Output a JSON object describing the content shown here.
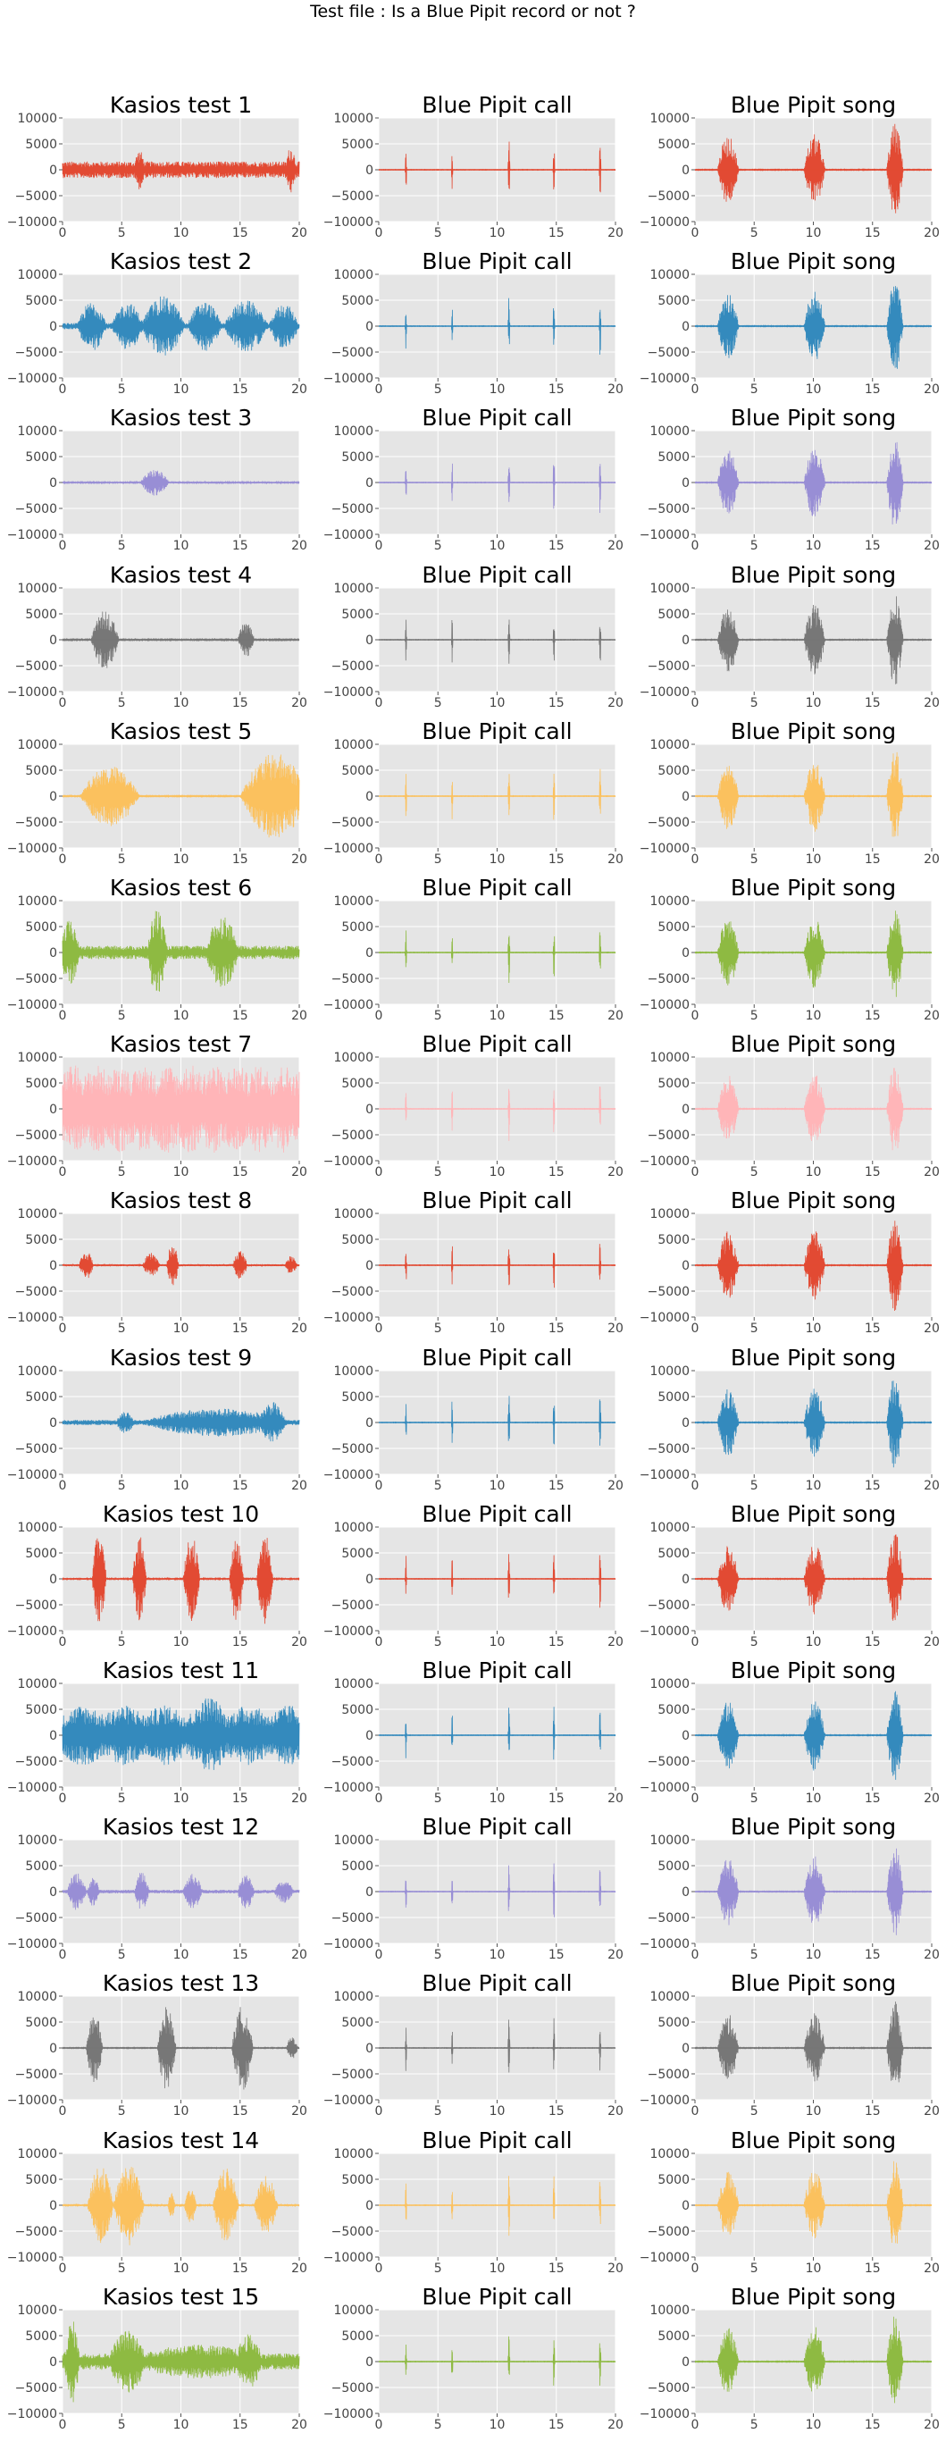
{
  "figure_title": "Test file : Is a Blue Pipit record or not ?",
  "colors": [
    "#E24A33",
    "#348ABD",
    "#988ED5",
    "#777777",
    "#FBC15E",
    "#8EBA42",
    "#FFB5B8"
  ],
  "chart_data": {
    "type": "line",
    "grid": true,
    "x_ticks": [
      "0",
      "5",
      "10",
      "15",
      "20"
    ],
    "y_ticks": [
      "10000",
      "5000",
      "0",
      "−5000",
      "−10000"
    ],
    "xlim": [
      0,
      20
    ],
    "ylim": [
      -10000,
      10000
    ],
    "rows": [
      {
        "test_title": "Kasios test 1",
        "color": "#E24A33",
        "pattern": "noise_low"
      },
      {
        "test_title": "Kasios test 2",
        "color": "#348ABD",
        "pattern": "bursts_dense"
      },
      {
        "test_title": "Kasios test 3",
        "color": "#988ED5",
        "pattern": "single_small"
      },
      {
        "test_title": "Kasios test 4",
        "color": "#777777",
        "pattern": "two_bursts"
      },
      {
        "test_title": "Kasios test 5",
        "color": "#FBC15E",
        "pattern": "two_long"
      },
      {
        "test_title": "Kasios test 6",
        "color": "#8EBA42",
        "pattern": "mixed"
      },
      {
        "test_title": "Kasios test 7",
        "color": "#FFB5B8",
        "pattern": "dense_full"
      },
      {
        "test_title": "Kasios test 8",
        "color": "#E24A33",
        "pattern": "sparse_bursts"
      },
      {
        "test_title": "Kasios test 9",
        "color": "#348ABD",
        "pattern": "medium_dense"
      },
      {
        "test_title": "Kasios test 10",
        "color": "#E24A33",
        "pattern": "five_bursts"
      },
      {
        "test_title": "Kasios test 11",
        "color": "#348ABD",
        "pattern": "thick_noise"
      },
      {
        "test_title": "Kasios test 12",
        "color": "#988ED5",
        "pattern": "many_small"
      },
      {
        "test_title": "Kasios test 13",
        "color": "#777777",
        "pattern": "four_bursts"
      },
      {
        "test_title": "Kasios test 14",
        "color": "#FBC15E",
        "pattern": "chunky"
      },
      {
        "test_title": "Kasios test 15",
        "color": "#8EBA42",
        "pattern": "decay_noise"
      }
    ],
    "reference_titles": {
      "call": "Blue Pipit call",
      "song": "Blue Pipit song"
    }
  }
}
